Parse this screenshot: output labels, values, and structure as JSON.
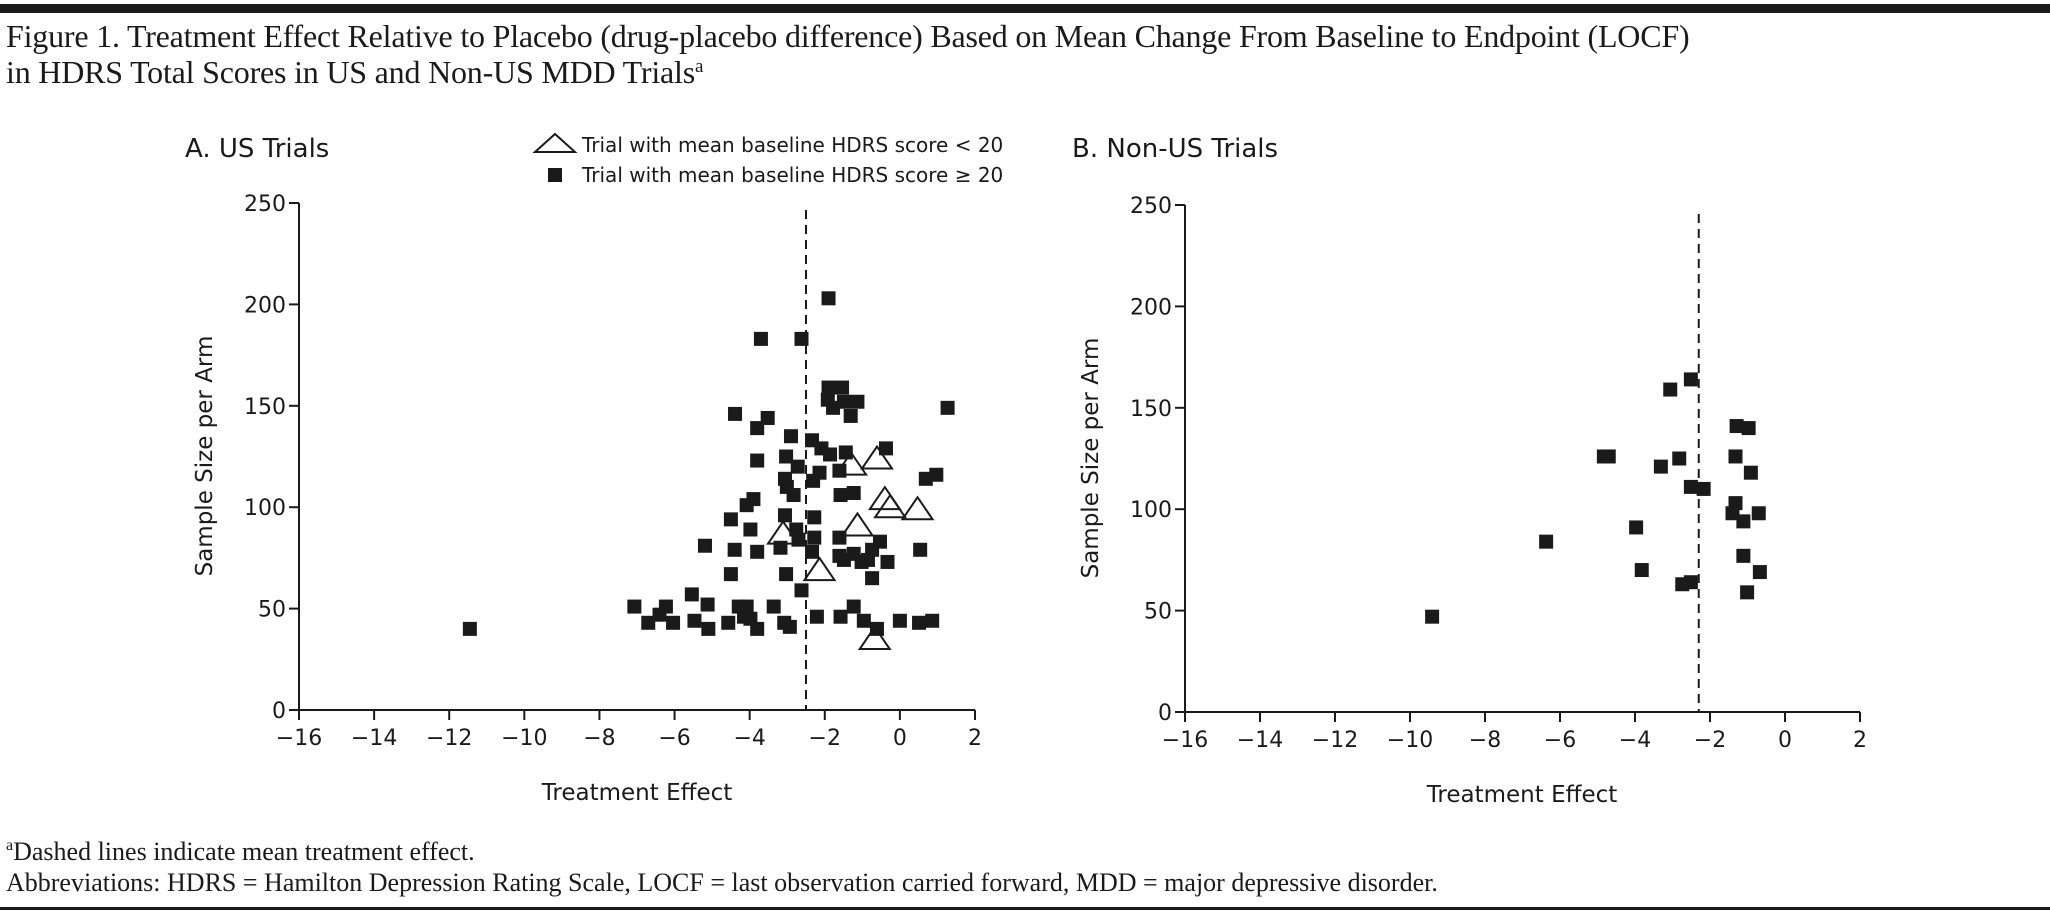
{
  "figure": {
    "title_line1": "Figure 1. Treatment Effect Relative to Placebo (drug-placebo difference) Based on Mean Change From Baseline to Endpoint (LOCF)",
    "title_line2": "in HDRS Total Scores in US and Non-US MDD Trials",
    "title_footnote_marker": "a",
    "footnote_marker": "a",
    "footnote_1": "Dashed lines indicate mean treatment effect.",
    "footnote_2": "Abbreviations: HDRS = Hamilton Depression Rating Scale, LOCF = last observation carried forward, MDD = major depressive disorder."
  },
  "colors": {
    "ink": "#1a1a1a",
    "background": "#ffffff"
  },
  "chart_data": [
    {
      "type": "scatter",
      "id": "us",
      "title": "A. US Trials",
      "xlabel": "Treatment Effect",
      "ylabel": "Sample Size per Arm",
      "xlim": [
        -16,
        2
      ],
      "ylim": [
        0,
        250
      ],
      "xticks": [
        -16,
        -14,
        -12,
        -10,
        -8,
        -6,
        -4,
        -2,
        0,
        2
      ],
      "xtick_labels": [
        "−16",
        "−14",
        "−12",
        "−10",
        "−8",
        "−6",
        "−4",
        "−2",
        "0",
        "2"
      ],
      "yticks": [
        0,
        50,
        100,
        150,
        200,
        250
      ],
      "ytick_labels": [
        "0",
        "50",
        "100",
        "150",
        "200",
        "250"
      ],
      "grid": false,
      "legend": {
        "placement": "top-right",
        "entries": [
          {
            "marker": "triangle-open",
            "label": "Trial with mean baseline HDRS score < 20"
          },
          {
            "marker": "square-filled",
            "label": "Trial with mean baseline HDRS score ≥ 20"
          }
        ]
      },
      "mean_line": {
        "x": -2.5,
        "style": "dashed",
        "label": "mean treatment effect"
      },
      "series": [
        {
          "name": "Trial with mean baseline HDRS score ≥ 20",
          "marker": "square-filled",
          "points": [
            [
              -11.45,
              40
            ],
            [
              -7.07,
              51
            ],
            [
              -6.7,
              43
            ],
            [
              -6.23,
              51
            ],
            [
              -6.4,
              47
            ],
            [
              -6.04,
              43
            ],
            [
              -5.54,
              57
            ],
            [
              -5.47,
              44
            ],
            [
              -5.12,
              52
            ],
            [
              -5.1,
              40
            ],
            [
              -5.19,
              81
            ],
            [
              -4.57,
              43
            ],
            [
              -4.5,
              67
            ],
            [
              -4.4,
              79
            ],
            [
              -4.5,
              94
            ],
            [
              -4.39,
              146
            ],
            [
              -4.29,
              51
            ],
            [
              -4.15,
              46
            ],
            [
              -4.08,
              51
            ],
            [
              -3.98,
              45
            ],
            [
              -3.8,
              40
            ],
            [
              -3.98,
              89
            ],
            [
              -4.08,
              101
            ],
            [
              -3.9,
              104
            ],
            [
              -3.8,
              78
            ],
            [
              -3.8,
              123
            ],
            [
              -3.8,
              139
            ],
            [
              -3.7,
              183
            ],
            [
              -3.52,
              144
            ],
            [
              -3.36,
              51
            ],
            [
              -3.08,
              43
            ],
            [
              -2.93,
              41
            ],
            [
              -3.18,
              80
            ],
            [
              -3.03,
              67
            ],
            [
              -3.06,
              96
            ],
            [
              -3.06,
              114
            ],
            [
              -3.03,
              125
            ],
            [
              -2.9,
              135
            ],
            [
              -3.01,
              110
            ],
            [
              -2.83,
              106
            ],
            [
              -2.72,
              120
            ],
            [
              -2.62,
              183
            ],
            [
              -2.76,
              89
            ],
            [
              -2.62,
              59
            ],
            [
              -2.7,
              84
            ],
            [
              -2.28,
              95
            ],
            [
              -2.28,
              85
            ],
            [
              -2.34,
              78
            ],
            [
              -2.31,
              113
            ],
            [
              -2.14,
              117
            ],
            [
              -2.34,
              133
            ],
            [
              -2.09,
              129
            ],
            [
              -1.86,
              126
            ],
            [
              -2.21,
              46
            ],
            [
              -1.9,
              203
            ],
            [
              -1.92,
              153
            ],
            [
              -1.78,
              149
            ],
            [
              -1.9,
              159
            ],
            [
              -1.54,
              159
            ],
            [
              -1.49,
              152
            ],
            [
              -1.31,
              145
            ],
            [
              -1.13,
              152
            ],
            [
              -1.58,
              106
            ],
            [
              -1.23,
              107
            ],
            [
              -1.44,
              127
            ],
            [
              -1.61,
              118
            ],
            [
              -1.61,
              85
            ],
            [
              -1.58,
              46
            ],
            [
              -1.23,
              51
            ],
            [
              -0.96,
              44
            ],
            [
              -0.61,
              40
            ],
            [
              -1.61,
              76
            ],
            [
              -1.49,
              74
            ],
            [
              -1.23,
              77
            ],
            [
              -1.02,
              73
            ],
            [
              -0.85,
              74
            ],
            [
              -0.74,
              79
            ],
            [
              -0.53,
              83
            ],
            [
              -0.33,
              73
            ],
            [
              -0.74,
              65
            ],
            [
              -0.37,
              129
            ],
            [
              0.0,
              44
            ],
            [
              0.51,
              43
            ],
            [
              0.86,
              44
            ],
            [
              0.54,
              79
            ],
            [
              0.69,
              114
            ],
            [
              0.97,
              116
            ],
            [
              1.27,
              149
            ]
          ]
        },
        {
          "name": "Trial with mean baseline HDRS score < 20",
          "marker": "triangle-open",
          "points": [
            [
              -3.11,
              87
            ],
            [
              -2.14,
              69
            ],
            [
              -1.3,
              121
            ],
            [
              -0.61,
              124
            ],
            [
              -0.4,
              104
            ],
            [
              -0.26,
              100
            ],
            [
              0.47,
              99
            ],
            [
              -1.13,
              91
            ],
            [
              -0.67,
              35
            ]
          ]
        }
      ]
    },
    {
      "type": "scatter",
      "id": "nonus",
      "title": "B. Non-US Trials",
      "xlabel": "Treatment Effect",
      "ylabel": "Sample Size per Arm",
      "xlim": [
        -16,
        2
      ],
      "ylim": [
        0,
        250
      ],
      "xticks": [
        -16,
        -14,
        -12,
        -10,
        -8,
        -6,
        -4,
        -2,
        0,
        2
      ],
      "xtick_labels": [
        "−16",
        "−14",
        "−12",
        "−10",
        "−8",
        "−6",
        "−4",
        "−2",
        "0",
        "2"
      ],
      "yticks": [
        0,
        50,
        100,
        150,
        200,
        250
      ],
      "ytick_labels": [
        "0",
        "50",
        "100",
        "150",
        "200",
        "250"
      ],
      "grid": false,
      "mean_line": {
        "x": -2.3,
        "style": "dashed",
        "label": "mean treatment effect"
      },
      "series": [
        {
          "name": "Trial with mean baseline HDRS score ≥ 20",
          "marker": "square-filled",
          "points": [
            [
              -9.41,
              47
            ],
            [
              -6.37,
              84
            ],
            [
              -4.83,
              126
            ],
            [
              -4.7,
              126
            ],
            [
              -3.97,
              91
            ],
            [
              -3.82,
              70
            ],
            [
              -3.31,
              121
            ],
            [
              -3.06,
              159
            ],
            [
              -2.82,
              125
            ],
            [
              -2.74,
              63
            ],
            [
              -2.51,
              64
            ],
            [
              -2.51,
              164
            ],
            [
              -2.51,
              111
            ],
            [
              -2.17,
              110
            ],
            [
              -1.4,
              98
            ],
            [
              -1.32,
              103
            ],
            [
              -1.32,
              126
            ],
            [
              -1.29,
              141
            ],
            [
              -0.97,
              140
            ],
            [
              -1.11,
              94
            ],
            [
              -1.11,
              77
            ],
            [
              -1.01,
              59
            ],
            [
              -0.91,
              118
            ],
            [
              -0.7,
              98
            ],
            [
              -0.67,
              69
            ]
          ]
        }
      ]
    }
  ]
}
